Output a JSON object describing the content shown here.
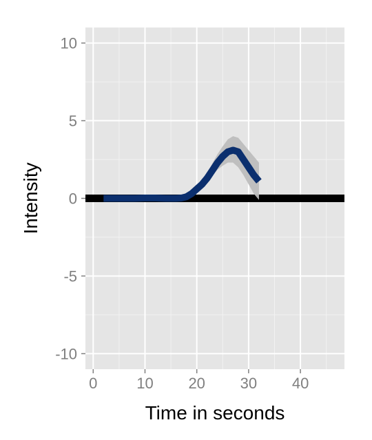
{
  "chart_data": {
    "type": "line",
    "title": "",
    "xlabel": "Time in seconds",
    "ylabel": "Intensity",
    "xlim": [
      -1.5,
      48.5
    ],
    "ylim": [
      -11,
      11
    ],
    "x_ticks": [
      0,
      10,
      20,
      30,
      40
    ],
    "x_tick_labels": [
      "0",
      "10",
      "20",
      "30",
      "40"
    ],
    "y_ticks": [
      -10,
      -5,
      0,
      5,
      10
    ],
    "y_tick_labels": [
      "-10",
      "-5",
      "0",
      "5",
      "10"
    ],
    "grid": true,
    "legend": "none",
    "background_color": "#e5e5e5",
    "grid_color": "#ffffff",
    "reference_line": {
      "y": 0,
      "color": "#000000"
    },
    "series": [
      {
        "color": "#0b2f6e",
        "x": [
          2,
          4,
          6,
          8,
          10,
          12,
          14,
          16,
          17,
          18,
          19,
          20,
          21,
          22,
          23,
          24,
          25,
          26,
          27,
          28,
          29,
          30,
          31,
          32
        ],
        "y": [
          0,
          0,
          0,
          0,
          0.02,
          0.02,
          0,
          0,
          0.02,
          0.1,
          0.3,
          0.6,
          0.9,
          1.3,
          1.8,
          2.3,
          2.7,
          3.0,
          3.1,
          3.0,
          2.5,
          2.0,
          1.5,
          1.1
        ],
        "band_color": "#bdbdbd",
        "band_lower": [
          0,
          0,
          0,
          0,
          0.01,
          0.01,
          0,
          0,
          0,
          0.05,
          0.2,
          0.45,
          0.7,
          1.05,
          1.45,
          1.85,
          2.1,
          2.3,
          2.3,
          2.0,
          1.5,
          0.9,
          0.3,
          -0.1
        ],
        "band_upper": [
          0,
          0,
          0,
          0,
          0.03,
          0.03,
          0,
          0,
          0.04,
          0.15,
          0.4,
          0.75,
          1.1,
          1.6,
          2.25,
          2.85,
          3.35,
          3.8,
          4.0,
          3.9,
          3.5,
          3.1,
          2.7,
          2.3
        ]
      }
    ]
  }
}
